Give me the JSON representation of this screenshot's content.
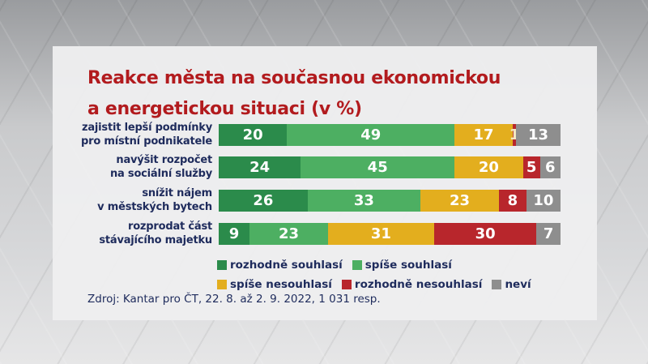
{
  "chart_data": {
    "type": "bar",
    "orientation": "horizontal",
    "stacked": true,
    "title_lines": [
      "Reakce města na současnou ekonomickou",
      "a energetickou situaci (v %)"
    ],
    "categories": [
      [
        "zajistit lepší podmínky",
        "pro místní podnikatele"
      ],
      [
        "navýšit rozpočet",
        "na sociální služby"
      ],
      [
        "snížit nájem",
        "v městských bytech"
      ],
      [
        "rozprodat část",
        "stávajícího majetku"
      ]
    ],
    "series": [
      {
        "name": "rozhodně souhlasí",
        "color": "#2b8b4b",
        "values": [
          20,
          24,
          26,
          9
        ]
      },
      {
        "name": "spíše souhlasí",
        "color": "#4daf62",
        "values": [
          49,
          45,
          33,
          23
        ]
      },
      {
        "name": "spíše nesouhlasí",
        "color": "#e3ae1e",
        "values": [
          17,
          20,
          23,
          31
        ]
      },
      {
        "name": "rozhodně nesouhlasí",
        "color": "#b8262c",
        "values": [
          1,
          5,
          8,
          30
        ]
      },
      {
        "name": "neví",
        "color": "#8e8e8e",
        "values": [
          13,
          6,
          10,
          7
        ]
      }
    ],
    "xlim": [
      0,
      100
    ],
    "legend_position": "bottom",
    "grid": false,
    "source": "Zdroj: Kantar pro ČT, 22. 8. až 2. 9. 2022, 1 031 resp."
  }
}
